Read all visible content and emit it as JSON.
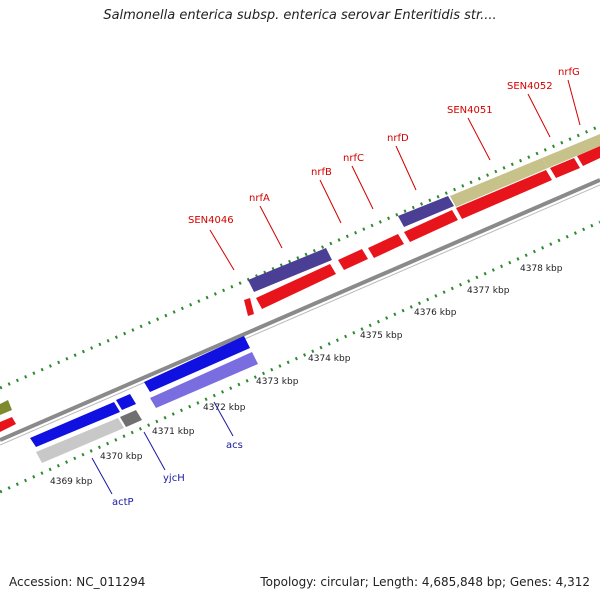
{
  "title": "Salmonella enterica subsp. enterica serovar Enteritidis str....",
  "accession_text": "Accession: NC_011294",
  "summary_text": "Topology: circular; Length: 4,685,848 bp; Genes: 4,312",
  "colors": {
    "forward_gene": "#e8141c",
    "reverse_gene": "#1010e0",
    "reverse_light": "#7a6de0",
    "reverse_gray": "#c8c8c8",
    "dark_gray": "#707070",
    "operon_purple": "#4a3f94",
    "khaki": "#c7c28a",
    "olive": "#7f8a2f",
    "backbone": "#8a8a8a",
    "tick": "#2e8b2e",
    "forward_label": "#d40000",
    "reverse_label": "#1a1aa0"
  },
  "tick_labels": [
    "4369 kbp",
    "4370 kbp",
    "4371 kbp",
    "4372 kbp",
    "4373 kbp",
    "4374 kbp",
    "4375 kbp",
    "4376 kbp",
    "4377 kbp",
    "4378 kbp"
  ],
  "forward_gene_labels": [
    "SEN4046",
    "nrfA",
    "nrfB",
    "nrfC",
    "nrfD",
    "SEN4051",
    "SEN4052",
    "nrfG"
  ],
  "reverse_gene_labels": [
    "actP",
    "yjcH",
    "acs"
  ]
}
